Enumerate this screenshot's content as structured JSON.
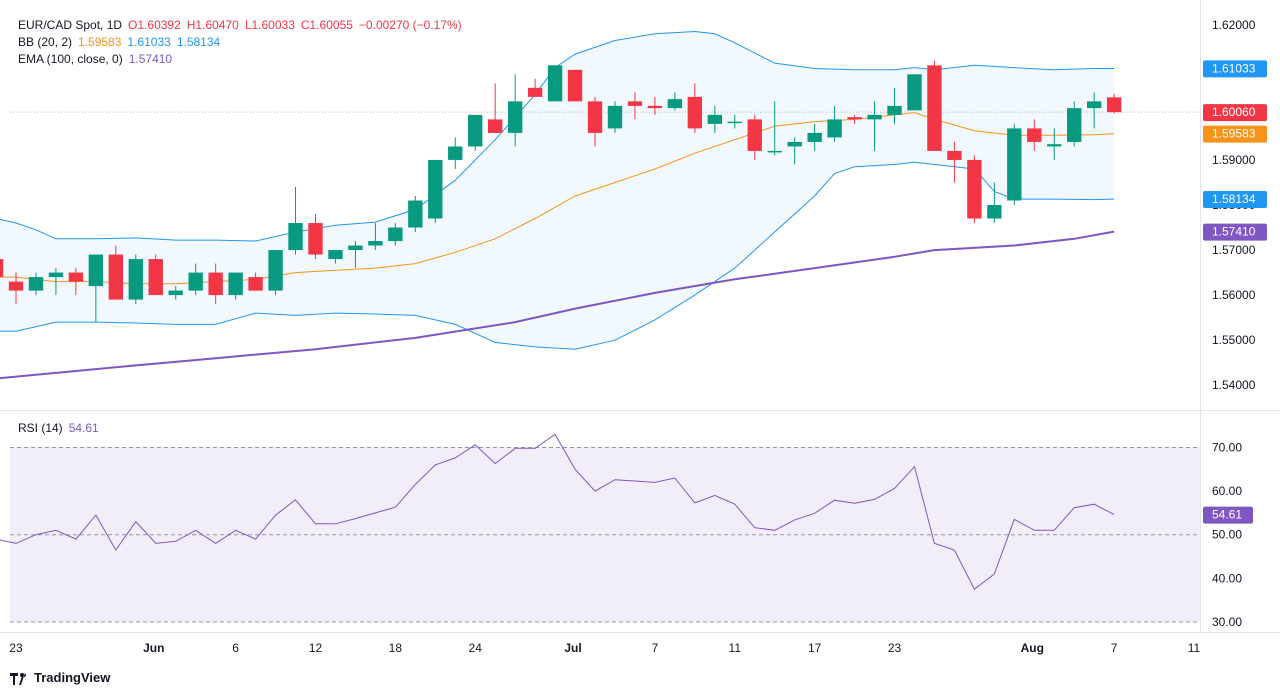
{
  "header": {
    "symbol": "EUR/CAD Spot, 1D",
    "open": "O1.60392",
    "high": "H1.60470",
    "low": "L1.60033",
    "close": "C1.60055",
    "change": "−0.00270 (−0.17%)",
    "bb_label": "BB (20, 2)",
    "bb_mid": "1.59583",
    "bb_upper": "1.61033",
    "bb_lower": "1.58134",
    "ema_label": "EMA (100, close, 0)",
    "ema_value": "1.57410"
  },
  "rsi": {
    "label": "RSI (14)",
    "value": "54.61"
  },
  "footer": {
    "brand": "TradingView"
  },
  "colors": {
    "up": "#089981",
    "down": "#f23645",
    "bb_mid": "#f7931a",
    "bb_band": "#2196f3",
    "ema": "#7e57c2",
    "rsi_line": "#7e57c2",
    "rsi_fill": "#ede7f6"
  },
  "chart_data": {
    "type": "candlestick",
    "title": "EUR/CAD Spot, 1D",
    "price_ticks": [
      "1.62000",
      "1.61000",
      "1.60000",
      "1.59000",
      "1.58000",
      "1.57000",
      "1.56000",
      "1.55000",
      "1.54000"
    ],
    "price_range": [
      1.5345,
      1.6255
    ],
    "rsi_ticks": [
      "70.00",
      "60.00",
      "50.00",
      "40.00",
      "30.00"
    ],
    "rsi_range": [
      27.7,
      74
    ],
    "x_range": [
      -0.3,
      59.3
    ],
    "date_ticks": [
      {
        "label": "23",
        "idx": 0
      },
      {
        "label": "Jun",
        "idx": 6.9
      },
      {
        "label": "6",
        "idx": 11
      },
      {
        "label": "12",
        "idx": 15
      },
      {
        "label": "18",
        "idx": 19
      },
      {
        "label": "24",
        "idx": 23
      },
      {
        "label": "Jul",
        "idx": 27.9
      },
      {
        "label": "7",
        "idx": 32
      },
      {
        "label": "11",
        "idx": 36
      },
      {
        "label": "17",
        "idx": 40
      },
      {
        "label": "23",
        "idx": 44
      },
      {
        "label": "Aug",
        "idx": 50.9
      },
      {
        "label": "7",
        "idx": 55
      },
      {
        "label": "11",
        "idx": 59
      }
    ],
    "candles": [
      {
        "i": -1,
        "o": 1.568,
        "h": 1.569,
        "l": 1.562,
        "c": 1.564
      },
      {
        "i": 0,
        "o": 1.563,
        "h": 1.565,
        "l": 1.558,
        "c": 1.561
      },
      {
        "i": 1,
        "o": 1.561,
        "h": 1.565,
        "l": 1.56,
        "c": 1.564
      },
      {
        "i": 2,
        "o": 1.564,
        "h": 1.566,
        "l": 1.56,
        "c": 1.565
      },
      {
        "i": 3,
        "o": 1.565,
        "h": 1.566,
        "l": 1.56,
        "c": 1.563
      },
      {
        "i": 4,
        "o": 1.562,
        "h": 1.569,
        "l": 1.554,
        "c": 1.569
      },
      {
        "i": 5,
        "o": 1.569,
        "h": 1.571,
        "l": 1.559,
        "c": 1.559
      },
      {
        "i": 6,
        "o": 1.559,
        "h": 1.569,
        "l": 1.558,
        "c": 1.568
      },
      {
        "i": 7,
        "o": 1.568,
        "h": 1.569,
        "l": 1.56,
        "c": 1.56
      },
      {
        "i": 8,
        "o": 1.56,
        "h": 1.562,
        "l": 1.559,
        "c": 1.561
      },
      {
        "i": 9,
        "o": 1.561,
        "h": 1.567,
        "l": 1.56,
        "c": 1.565
      },
      {
        "i": 10,
        "o": 1.565,
        "h": 1.567,
        "l": 1.558,
        "c": 1.56
      },
      {
        "i": 11,
        "o": 1.56,
        "h": 1.565,
        "l": 1.559,
        "c": 1.565
      },
      {
        "i": 12,
        "o": 1.564,
        "h": 1.565,
        "l": 1.561,
        "c": 1.561
      },
      {
        "i": 13,
        "o": 1.561,
        "h": 1.57,
        "l": 1.56,
        "c": 1.57
      },
      {
        "i": 14,
        "o": 1.57,
        "h": 1.584,
        "l": 1.569,
        "c": 1.576
      },
      {
        "i": 15,
        "o": 1.576,
        "h": 1.578,
        "l": 1.568,
        "c": 1.569
      },
      {
        "i": 16,
        "o": 1.568,
        "h": 1.57,
        "l": 1.567,
        "c": 1.57
      },
      {
        "i": 17,
        "o": 1.57,
        "h": 1.572,
        "l": 1.566,
        "c": 1.571
      },
      {
        "i": 18,
        "o": 1.571,
        "h": 1.576,
        "l": 1.57,
        "c": 1.572
      },
      {
        "i": 19,
        "o": 1.572,
        "h": 1.576,
        "l": 1.571,
        "c": 1.575
      },
      {
        "i": 20,
        "o": 1.575,
        "h": 1.582,
        "l": 1.574,
        "c": 1.581
      },
      {
        "i": 21,
        "o": 1.577,
        "h": 1.59,
        "l": 1.576,
        "c": 1.59
      },
      {
        "i": 22,
        "o": 1.59,
        "h": 1.595,
        "l": 1.588,
        "c": 1.593
      },
      {
        "i": 23,
        "o": 1.593,
        "h": 1.6,
        "l": 1.592,
        "c": 1.6
      },
      {
        "i": 24,
        "o": 1.599,
        "h": 1.607,
        "l": 1.596,
        "c": 1.596
      },
      {
        "i": 25,
        "o": 1.596,
        "h": 1.609,
        "l": 1.593,
        "c": 1.603
      },
      {
        "i": 26,
        "o": 1.606,
        "h": 1.608,
        "l": 1.604,
        "c": 1.604
      },
      {
        "i": 27,
        "o": 1.603,
        "h": 1.611,
        "l": 1.603,
        "c": 1.611
      },
      {
        "i": 28,
        "o": 1.61,
        "h": 1.61,
        "l": 1.603,
        "c": 1.603
      },
      {
        "i": 29,
        "o": 1.603,
        "h": 1.604,
        "l": 1.593,
        "c": 1.596
      },
      {
        "i": 30,
        "o": 1.597,
        "h": 1.603,
        "l": 1.596,
        "c": 1.602
      },
      {
        "i": 31,
        "o": 1.603,
        "h": 1.605,
        "l": 1.599,
        "c": 1.602
      },
      {
        "i": 32,
        "o": 1.602,
        "h": 1.604,
        "l": 1.6,
        "c": 1.6015
      },
      {
        "i": 33,
        "o": 1.6015,
        "h": 1.605,
        "l": 1.601,
        "c": 1.6035
      },
      {
        "i": 34,
        "o": 1.604,
        "h": 1.607,
        "l": 1.596,
        "c": 1.597
      },
      {
        "i": 35,
        "o": 1.598,
        "h": 1.602,
        "l": 1.596,
        "c": 1.6
      },
      {
        "i": 36,
        "o": 1.5985,
        "h": 1.6,
        "l": 1.597,
        "c": 1.5985
      },
      {
        "i": 37,
        "o": 1.599,
        "h": 1.6,
        "l": 1.59,
        "c": 1.592
      },
      {
        "i": 38,
        "o": 1.592,
        "h": 1.603,
        "l": 1.591,
        "c": 1.592
      },
      {
        "i": 39,
        "o": 1.593,
        "h": 1.595,
        "l": 1.589,
        "c": 1.594
      },
      {
        "i": 40,
        "o": 1.594,
        "h": 1.598,
        "l": 1.592,
        "c": 1.596
      },
      {
        "i": 41,
        "o": 1.595,
        "h": 1.602,
        "l": 1.594,
        "c": 1.599
      },
      {
        "i": 42,
        "o": 1.5995,
        "h": 1.6,
        "l": 1.598,
        "c": 1.599
      },
      {
        "i": 43,
        "o": 1.599,
        "h": 1.603,
        "l": 1.592,
        "c": 1.6
      },
      {
        "i": 44,
        "o": 1.6,
        "h": 1.606,
        "l": 1.598,
        "c": 1.602
      },
      {
        "i": 45,
        "o": 1.601,
        "h": 1.609,
        "l": 1.601,
        "c": 1.609
      },
      {
        "i": 46,
        "o": 1.611,
        "h": 1.612,
        "l": 1.592,
        "c": 1.592
      },
      {
        "i": 47,
        "o": 1.592,
        "h": 1.594,
        "l": 1.585,
        "c": 1.59
      },
      {
        "i": 48,
        "o": 1.59,
        "h": 1.591,
        "l": 1.576,
        "c": 1.577
      },
      {
        "i": 49,
        "o": 1.577,
        "h": 1.585,
        "l": 1.576,
        "c": 1.58
      },
      {
        "i": 50,
        "o": 1.581,
        "h": 1.598,
        "l": 1.58,
        "c": 1.597
      },
      {
        "i": 51,
        "o": 1.597,
        "h": 1.599,
        "l": 1.592,
        "c": 1.594
      },
      {
        "i": 52,
        "o": 1.593,
        "h": 1.597,
        "l": 1.59,
        "c": 1.5935
      },
      {
        "i": 53,
        "o": 1.594,
        "h": 1.603,
        "l": 1.593,
        "c": 1.6015
      },
      {
        "i": 54,
        "o": 1.6015,
        "h": 1.605,
        "l": 1.597,
        "c": 1.603
      },
      {
        "i": 55,
        "o": 1.6039,
        "h": 1.6047,
        "l": 1.6003,
        "c": 1.6006
      }
    ],
    "series": [
      {
        "name": "BB (20, 2) basis",
        "points": [
          [
            -1,
            1.564
          ],
          [
            0,
            1.564
          ],
          [
            2,
            1.563
          ],
          [
            4,
            1.563
          ],
          [
            6,
            1.5625
          ],
          [
            8,
            1.5625
          ],
          [
            10,
            1.563
          ],
          [
            12,
            1.5635
          ],
          [
            14,
            1.565
          ],
          [
            16,
            1.5655
          ],
          [
            18,
            1.566
          ],
          [
            20,
            1.567
          ],
          [
            22,
            1.5695
          ],
          [
            24,
            1.5725
          ],
          [
            26,
            1.577
          ],
          [
            28,
            1.582
          ],
          [
            30,
            1.585
          ],
          [
            32,
            1.588
          ],
          [
            34,
            1.5915
          ],
          [
            36,
            1.5945
          ],
          [
            38,
            1.5975
          ],
          [
            40,
            1.5985
          ],
          [
            42,
            1.599
          ],
          [
            44,
            1.6
          ],
          [
            45,
            1.6005
          ],
          [
            46,
            1.599
          ],
          [
            48,
            1.5965
          ],
          [
            50,
            1.5955
          ],
          [
            52,
            1.5955
          ],
          [
            54,
            1.5956
          ],
          [
            55,
            1.5958
          ]
        ]
      },
      {
        "name": "BB (20, 2) upper",
        "points": [
          [
            -1,
            1.577
          ],
          [
            0,
            1.576
          ],
          [
            1,
            1.5745
          ],
          [
            2,
            1.5725
          ],
          [
            4,
            1.5725
          ],
          [
            6,
            1.5727
          ],
          [
            8,
            1.5722
          ],
          [
            10,
            1.5722
          ],
          [
            12,
            1.572
          ],
          [
            14,
            1.574
          ],
          [
            16,
            1.5755
          ],
          [
            18,
            1.5762
          ],
          [
            20,
            1.579
          ],
          [
            22,
            1.5855
          ],
          [
            24,
            1.5945
          ],
          [
            26,
            1.6045
          ],
          [
            27,
            1.6105
          ],
          [
            28,
            1.6135
          ],
          [
            30,
            1.6165
          ],
          [
            32,
            1.618
          ],
          [
            34,
            1.6185
          ],
          [
            35,
            1.618
          ],
          [
            36,
            1.616
          ],
          [
            38,
            1.6115
          ],
          [
            40,
            1.6103
          ],
          [
            42,
            1.61
          ],
          [
            44,
            1.61
          ],
          [
            45,
            1.6105
          ],
          [
            46,
            1.61
          ],
          [
            48,
            1.611
          ],
          [
            50,
            1.6105
          ],
          [
            52,
            1.61
          ],
          [
            54,
            1.6103
          ],
          [
            55,
            1.6103
          ]
        ]
      },
      {
        "name": "BB (20, 2) lower",
        "points": [
          [
            -1,
            1.552
          ],
          [
            0,
            1.552
          ],
          [
            2,
            1.554
          ],
          [
            4,
            1.554
          ],
          [
            6,
            1.5538
          ],
          [
            8,
            1.5535
          ],
          [
            10,
            1.5535
          ],
          [
            12,
            1.556
          ],
          [
            14,
            1.5555
          ],
          [
            16,
            1.556
          ],
          [
            18,
            1.5558
          ],
          [
            20,
            1.5555
          ],
          [
            22,
            1.5535
          ],
          [
            24,
            1.5495
          ],
          [
            26,
            1.5485
          ],
          [
            28,
            1.548
          ],
          [
            30,
            1.55
          ],
          [
            32,
            1.5545
          ],
          [
            34,
            1.56
          ],
          [
            36,
            1.566
          ],
          [
            38,
            1.574
          ],
          [
            40,
            1.582
          ],
          [
            41,
            1.587
          ],
          [
            42,
            1.5885
          ],
          [
            44,
            1.589
          ],
          [
            45,
            1.5895
          ],
          [
            46,
            1.589
          ],
          [
            48,
            1.588
          ],
          [
            49,
            1.583
          ],
          [
            50,
            1.5813
          ],
          [
            52,
            1.5813
          ],
          [
            54,
            1.5812
          ],
          [
            55,
            1.5813
          ]
        ]
      },
      {
        "name": "EMA (100, close, 0)",
        "points": [
          [
            -1,
            1.5415
          ],
          [
            5,
            1.544
          ],
          [
            10,
            1.546
          ],
          [
            15,
            1.548
          ],
          [
            20,
            1.5505
          ],
          [
            25,
            1.554
          ],
          [
            28,
            1.557
          ],
          [
            32,
            1.5605
          ],
          [
            36,
            1.5635
          ],
          [
            40,
            1.566
          ],
          [
            44,
            1.5685
          ],
          [
            46,
            1.57
          ],
          [
            50,
            1.571
          ],
          [
            53,
            1.5725
          ],
          [
            55,
            1.5741
          ]
        ]
      },
      {
        "name": "RSI (14)",
        "points": [
          [
            -1,
            49
          ],
          [
            0,
            48
          ],
          [
            1,
            50
          ],
          [
            2,
            51
          ],
          [
            3,
            49
          ],
          [
            4,
            54.5
          ],
          [
            5,
            46.5
          ],
          [
            6,
            53
          ],
          [
            7,
            48
          ],
          [
            8,
            48.5
          ],
          [
            9,
            51
          ],
          [
            10,
            48
          ],
          [
            11,
            51
          ],
          [
            12,
            49
          ],
          [
            13,
            54.5
          ],
          [
            14,
            58
          ],
          [
            15,
            52.5
          ],
          [
            16,
            52.5
          ],
          [
            17,
            53.7
          ],
          [
            18,
            55
          ],
          [
            19,
            56.3
          ],
          [
            20,
            61.5
          ],
          [
            21,
            66
          ],
          [
            22,
            67.6
          ],
          [
            23,
            70.6
          ],
          [
            24,
            66.3
          ],
          [
            25,
            69.8
          ],
          [
            26,
            69.8
          ],
          [
            27,
            73
          ],
          [
            28,
            65
          ],
          [
            29,
            60
          ],
          [
            30,
            62.6
          ],
          [
            31,
            62.3
          ],
          [
            32,
            62
          ],
          [
            33,
            63
          ],
          [
            34,
            57.3
          ],
          [
            35,
            59
          ],
          [
            36,
            57
          ],
          [
            37,
            51.6
          ],
          [
            38,
            51
          ],
          [
            39,
            53.4
          ],
          [
            40,
            54.9
          ],
          [
            41,
            57.9
          ],
          [
            42,
            57.2
          ],
          [
            43,
            58.1
          ],
          [
            44,
            60.6
          ],
          [
            45,
            65.6
          ],
          [
            46,
            48
          ],
          [
            47,
            46.5
          ],
          [
            48,
            37.5
          ],
          [
            49,
            41
          ],
          [
            50,
            53.5
          ],
          [
            51,
            51
          ],
          [
            52,
            51
          ],
          [
            53,
            56.2
          ],
          [
            54,
            57
          ],
          [
            55,
            54.6
          ]
        ]
      }
    ]
  }
}
